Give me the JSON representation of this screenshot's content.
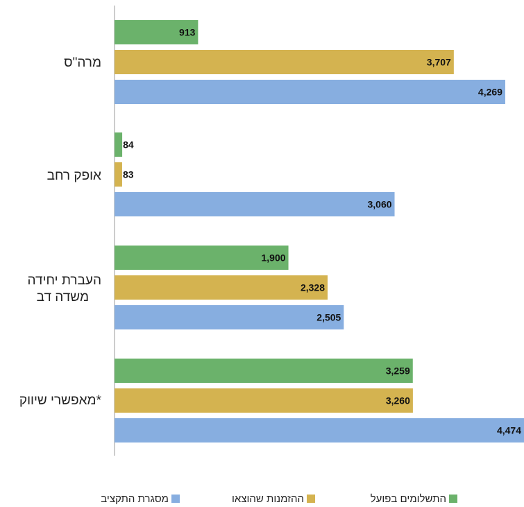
{
  "chart_data": {
    "type": "bar",
    "orientation": "horizontal",
    "categories": [
      "מרה\"ס",
      "אופק רחב",
      "העברת יחידה משדה דב",
      "מאפשרי שיווק*"
    ],
    "series": [
      {
        "name": "התשלומים בפועל",
        "color": "#6bb26b",
        "values": [
          913,
          84,
          1900,
          3259
        ],
        "labels": [
          "913",
          "84",
          "1,900",
          "3,259"
        ]
      },
      {
        "name": "ההזמנות שהוצאו",
        "color": "#d4b350",
        "values": [
          3707,
          83,
          2328,
          3260
        ],
        "labels": [
          "3,707",
          "83",
          "2,328",
          "3,260"
        ]
      },
      {
        "name": "מסגרת התקציב",
        "color": "#87aee0",
        "values": [
          4269,
          3060,
          2505,
          4474
        ],
        "labels": [
          "4,269",
          "3,060",
          "2,505",
          "4,474"
        ]
      }
    ],
    "xlim": [
      0,
      4474
    ],
    "grid": false,
    "legend_position": "bottom"
  }
}
